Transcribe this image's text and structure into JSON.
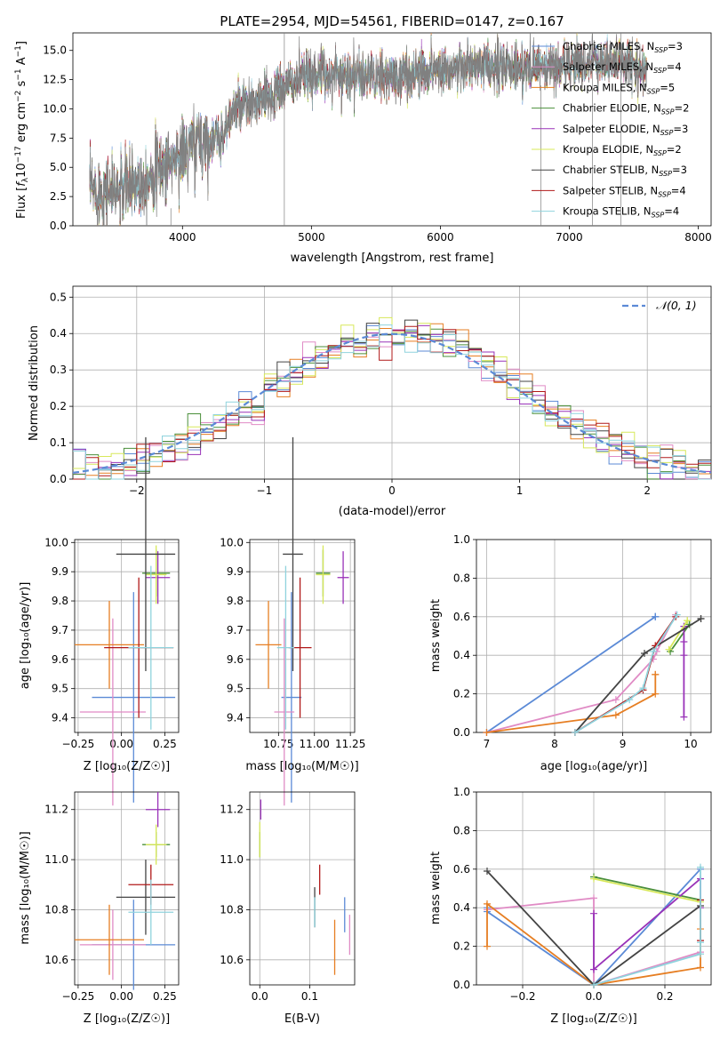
{
  "figure": {
    "title": "PLATE=2954, MJD=54561, FIBERID=0147, z=0.167"
  },
  "models": [
    {
      "name": "Chabrier MILES",
      "nssp": "3",
      "color": "#5b8ad6"
    },
    {
      "name": "Salpeter MILES",
      "nssp": "4",
      "color": "#e08bc5"
    },
    {
      "name": "Kroupa MILES",
      "nssp": "5",
      "color": "#e67e22"
    },
    {
      "name": "Chabrier ELODIE",
      "nssp": "2",
      "color": "#4a8f3a"
    },
    {
      "name": "Salpeter ELODIE",
      "nssp": "3",
      "color": "#9932b8"
    },
    {
      "name": "Kroupa ELODIE",
      "nssp": "2",
      "color": "#d7e85a"
    },
    {
      "name": "Chabrier STELIB",
      "nssp": "3",
      "color": "#444444"
    },
    {
      "name": "Salpeter STELIB",
      "nssp": "4",
      "color": "#b01818"
    },
    {
      "name": "Kroupa STELIB",
      "nssp": "4",
      "color": "#8fd3dd"
    }
  ],
  "chart_data": [
    {
      "id": "spectrum",
      "type": "line",
      "xlabel": "wavelength [Angstrom, rest frame]",
      "xlim": [
        3150,
        8100
      ],
      "ylim": [
        0,
        16.5
      ],
      "xticks": [
        4000,
        5000,
        6000,
        7000,
        8000
      ],
      "yticks": [
        "0.0",
        "2.5",
        "5.0",
        "7.5",
        "10.0",
        "12.5",
        "15.0"
      ],
      "ylabel_parts": [
        "Flux [",
        "f",
        "λ",
        "10",
        "−17",
        " erg cm",
        "−2",
        " s",
        "−1",
        " A",
        "−1",
        "]"
      ],
      "grid": false,
      "legend_position": "top-right",
      "spectrum_anchor_x": [
        3280,
        3500,
        3700,
        3900,
        4100,
        4300,
        4400,
        4600,
        4800,
        5000,
        5200,
        5400,
        5600,
        5800,
        6000,
        6200,
        6400,
        6600,
        6800,
        7000,
        7200,
        7400,
        7600
      ],
      "spectrum_anchor_y": [
        3.0,
        3.0,
        4.0,
        5.5,
        7.0,
        7.5,
        10.0,
        10.5,
        12.0,
        13.0,
        13.0,
        12.8,
        12.6,
        13.0,
        13.5,
        13.5,
        13.5,
        13.5,
        13.5,
        13.8,
        14.0,
        14.0,
        13.5
      ]
    },
    {
      "id": "residuals",
      "type": "histogram",
      "xlabel": "(data-model)/error",
      "ylabel": "Normed distribution",
      "xlim": [
        -2.5,
        2.5
      ],
      "ylim": [
        0,
        0.53
      ],
      "xticks": [
        "−2",
        "−1",
        "0",
        "1",
        "2"
      ],
      "yticks": [
        "0.0",
        "0.1",
        "0.2",
        "0.3",
        "0.4",
        "0.5"
      ],
      "grid": true,
      "legend_label": "𝒩(0, 1)",
      "legend_position": "top-right",
      "bin_width": 0.1
    },
    {
      "id": "age-vs-Z",
      "type": "errorbar",
      "xlabel": "Z [log₁₀(Z/Z☉)]",
      "ylabel": "age  [log₁₀(age/yr)]",
      "xlim": [
        -0.27,
        0.33
      ],
      "ylim": [
        9.35,
        10.01
      ],
      "xticks": [
        "−0.25",
        "0.00",
        "0.25"
      ],
      "yticks": [
        "9.4",
        "9.5",
        "9.6",
        "9.7",
        "9.8",
        "9.9",
        "10.0"
      ],
      "points": [
        {
          "x": 0.07,
          "xerr": 0.24,
          "y": 9.47,
          "yerr": 0.36
        },
        {
          "x": -0.05,
          "xerr": 0.19,
          "y": 9.42,
          "yerr": 0.32
        },
        {
          "x": -0.07,
          "xerr": 0.2,
          "y": 9.65,
          "yerr": 0.15
        },
        {
          "x": 0.2,
          "xerr": 0.08,
          "y": 9.895,
          "yerr": 0.08
        },
        {
          "x": 0.21,
          "xerr": 0.07,
          "y": 9.88,
          "yerr": 0.09
        },
        {
          "x": 0.2,
          "xerr": 0.06,
          "y": 9.89,
          "yerr": 0.1
        },
        {
          "x": 0.14,
          "xerr": 0.17,
          "y": 9.96,
          "yerr": 0.4
        },
        {
          "x": 0.1,
          "xerr": 0.2,
          "y": 9.64,
          "yerr": 0.24
        },
        {
          "x": 0.17,
          "xerr": 0.13,
          "y": 9.64,
          "yerr": 0.28
        }
      ]
    },
    {
      "id": "age-vs-mass",
      "type": "errorbar",
      "xlabel": "mass [log₁₀(M/M☉)]",
      "xlim": [
        10.55,
        11.28
      ],
      "ylim": [
        9.35,
        10.01
      ],
      "xticks": [
        "10.75",
        "11.00",
        "11.25"
      ],
      "yticks": [
        "9.4",
        "9.5",
        "9.6",
        "9.7",
        "9.8",
        "9.9",
        "10.0"
      ],
      "points": [
        {
          "x": 10.84,
          "xerr": 0.07,
          "y": 9.47,
          "yerr": 0.36
        },
        {
          "x": 10.79,
          "xerr": 0.07,
          "y": 9.42,
          "yerr": 0.32
        },
        {
          "x": 10.68,
          "xerr": 0.09,
          "y": 9.65,
          "yerr": 0.15
        },
        {
          "x": 11.06,
          "xerr": 0.05,
          "y": 9.895,
          "yerr": 0.08
        },
        {
          "x": 11.2,
          "xerr": 0.04,
          "y": 9.88,
          "yerr": 0.09
        },
        {
          "x": 11.06,
          "xerr": 0.05,
          "y": 9.89,
          "yerr": 0.1
        },
        {
          "x": 10.85,
          "xerr": 0.07,
          "y": 9.96,
          "yerr": 0.4
        },
        {
          "x": 10.9,
          "xerr": 0.08,
          "y": 9.64,
          "yerr": 0.24
        },
        {
          "x": 10.8,
          "xerr": 0.06,
          "y": 9.64,
          "yerr": 0.28
        }
      ]
    },
    {
      "id": "massweight-vs-age",
      "type": "line",
      "ylabel": "mass weight",
      "xlabel": "age  [log₁₀(age/yr)]",
      "xlim": [
        6.85,
        10.3
      ],
      "ylim": [
        0,
        1.0
      ],
      "xticks": [
        "7",
        "8",
        "9",
        "10"
      ],
      "yticks": [
        "0.0",
        "0.2",
        "0.4",
        "0.6",
        "0.8",
        "1.0"
      ],
      "series": [
        {
          "x": [
            7.0,
            9.48,
            9.48,
            9.48
          ],
          "y": [
            0.0,
            0.6,
            0.6,
            0.6
          ]
        },
        {
          "x": [
            7.0,
            8.9,
            9.45,
            9.5,
            9.78
          ],
          "y": [
            0.0,
            0.17,
            0.38,
            0.42,
            0.61
          ]
        },
        {
          "x": [
            7.0,
            8.9,
            9.48,
            9.48,
            9.48
          ],
          "y": [
            0.0,
            0.09,
            0.2,
            0.3,
            0.3
          ]
        },
        {
          "x": [
            9.7,
            9.98,
            9.98
          ],
          "y": [
            0.42,
            0.56,
            0.56
          ]
        },
        {
          "x": [
            9.9,
            9.9,
            9.9,
            9.9
          ],
          "y": [
            0.08,
            0.4,
            0.47,
            0.55
          ]
        },
        {
          "x": [
            9.68,
            9.95,
            9.95
          ],
          "y": [
            0.43,
            0.58,
            0.58
          ]
        },
        {
          "x": [
            8.3,
            9.32,
            10.15,
            10.15
          ],
          "y": [
            0.0,
            0.41,
            0.59,
            0.59
          ]
        },
        {
          "x": [
            8.3,
            9.3,
            9.48,
            9.78
          ],
          "y": [
            0.0,
            0.22,
            0.45,
            0.6
          ]
        },
        {
          "x": [
            8.3,
            9.1,
            9.3,
            9.45,
            9.8
          ],
          "y": [
            0.0,
            0.17,
            0.23,
            0.42,
            0.61
          ]
        }
      ]
    },
    {
      "id": "mass-vs-Z",
      "type": "errorbar",
      "xlabel": "Z [log₁₀(Z/Z☉)]",
      "ylabel": "mass [log₁₀(M/M☉)]",
      "xlim": [
        -0.27,
        0.33
      ],
      "ylim": [
        10.5,
        11.27
      ],
      "xticks": [
        "−0.25",
        "0.00",
        "0.25"
      ],
      "yticks": [
        "10.6",
        "10.8",
        "11.0",
        "11.2"
      ],
      "points": [
        {
          "x": 0.07,
          "xerr": 0.24,
          "y": 10.66,
          "yerr": 0.18
        },
        {
          "x": -0.05,
          "xerr": 0.19,
          "y": 10.66,
          "yerr": 0.14
        },
        {
          "x": -0.07,
          "xerr": 0.2,
          "y": 10.68,
          "yerr": 0.14
        },
        {
          "x": 0.2,
          "xerr": 0.08,
          "y": 11.06,
          "yerr": 0.05
        },
        {
          "x": 0.21,
          "xerr": 0.07,
          "y": 11.2,
          "yerr": 0.07
        },
        {
          "x": 0.2,
          "xerr": 0.06,
          "y": 11.06,
          "yerr": 0.08
        },
        {
          "x": 0.14,
          "xerr": 0.17,
          "y": 10.85,
          "yerr": 0.15
        },
        {
          "x": 0.17,
          "xerr": 0.13,
          "y": 10.9,
          "yerr": 0.08
        },
        {
          "x": 0.17,
          "xerr": 0.13,
          "y": 10.79,
          "yerr": 0.13
        }
      ]
    },
    {
      "id": "mass-vs-ebv",
      "type": "errorbar",
      "xlabel": "E(B-V)",
      "xlim": [
        -0.02,
        0.19
      ],
      "ylim": [
        10.5,
        11.27
      ],
      "xticks": [
        "0.0",
        "0.1"
      ],
      "yticks": [
        "10.6",
        "10.8",
        "11.0",
        "11.2"
      ],
      "points": [
        {
          "x": 0.17,
          "xerr": 0,
          "y": 10.78,
          "yerr": 0.07
        },
        {
          "x": 0.18,
          "xerr": 0,
          "y": 10.7,
          "yerr": 0.08
        },
        {
          "x": 0.15,
          "xerr": 0,
          "y": 10.65,
          "yerr": 0.11
        },
        {
          "x": 0.0,
          "xerr": 0,
          "y": 11.06,
          "yerr": 0.05
        },
        {
          "x": 0.002,
          "xerr": 0,
          "y": 11.2,
          "yerr": 0.04
        },
        {
          "x": 0.0,
          "xerr": 0,
          "y": 11.08,
          "yerr": 0.07
        },
        {
          "x": 0.11,
          "xerr": 0,
          "y": 10.81,
          "yerr": 0.08
        },
        {
          "x": 0.12,
          "xerr": 0,
          "y": 10.92,
          "yerr": 0.06
        },
        {
          "x": 0.11,
          "xerr": 0,
          "y": 10.79,
          "yerr": 0.06
        }
      ]
    },
    {
      "id": "massweight-vs-Z",
      "type": "line",
      "ylabel": "mass weight",
      "xlabel": "Z [log₁₀(Z/Z☉)]",
      "xlim": [
        -0.33,
        0.33
      ],
      "ylim": [
        0,
        1.0
      ],
      "xticks": [
        "−0.2",
        "0.0",
        "0.2"
      ],
      "yticks": [
        "0.0",
        "0.2",
        "0.4",
        "0.6",
        "0.8",
        "1.0"
      ],
      "series": [
        {
          "x": [
            -0.3,
            -0.3,
            0.0,
            0.3
          ],
          "y": [
            0.4,
            0.38,
            0.0,
            0.6
          ]
        },
        {
          "x": [
            -0.3,
            0.0,
            0.0,
            0.3
          ],
          "y": [
            0.39,
            0.45,
            0.0,
            0.17
          ]
        },
        {
          "x": [
            -0.3,
            -0.3,
            0.0,
            0.3,
            0.3
          ],
          "y": [
            0.2,
            0.42,
            0.0,
            0.09,
            0.29
          ]
        },
        {
          "x": [
            0.0,
            0.3
          ],
          "y": [
            0.56,
            0.44
          ]
        },
        {
          "x": [
            0.0,
            0.0,
            0.3,
            0.3
          ],
          "y": [
            0.37,
            0.08,
            0.55,
            0.4
          ]
        },
        {
          "x": [
            0.0,
            0.3
          ],
          "y": [
            0.55,
            0.43
          ]
        },
        {
          "x": [
            -0.3,
            0.0,
            0.3
          ],
          "y": [
            0.59,
            0.0,
            0.41
          ]
        },
        {
          "x": [
            0.3,
            0.3
          ],
          "y": [
            0.23,
            0.44
          ]
        },
        {
          "x": [
            0.0,
            0.3,
            0.3,
            0.3
          ],
          "y": [
            0.0,
            0.16,
            0.61,
            0.22
          ]
        }
      ]
    }
  ]
}
